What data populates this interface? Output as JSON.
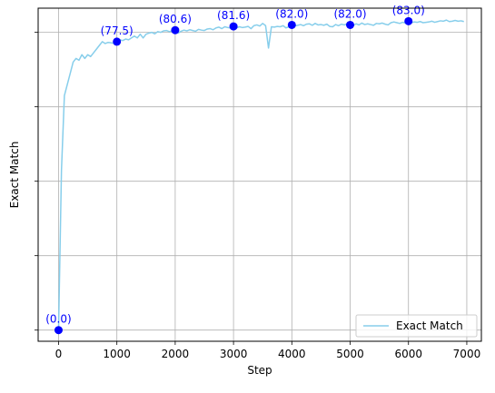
{
  "chart_data": {
    "type": "line",
    "xlabel": "Step",
    "ylabel": "Exact Match",
    "xlim": [
      -350,
      7250
    ],
    "ylim": [
      -3,
      86.5
    ],
    "xticks": [
      0,
      1000,
      2000,
      3000,
      4000,
      5000,
      6000,
      7000
    ],
    "yticks": [
      0,
      20,
      40,
      60,
      80
    ],
    "ytick_labels_visible": false,
    "grid": true,
    "legend": {
      "position": "lower-right",
      "entries": [
        "Exact Match"
      ]
    },
    "colors": {
      "line": "#87ceeb",
      "markers": "#0000ff",
      "annotations": "#0000ff"
    },
    "series": [
      {
        "name": "Exact Match",
        "x": [
          0,
          50,
          100,
          150,
          200,
          250,
          300,
          350,
          400,
          450,
          500,
          550,
          600,
          650,
          700,
          750,
          800,
          850,
          900,
          950,
          1000,
          1050,
          1100,
          1150,
          1200,
          1250,
          1300,
          1350,
          1400,
          1450,
          1500,
          1550,
          1600,
          1650,
          1700,
          1750,
          1800,
          1850,
          1900,
          1950,
          2000,
          2050,
          2100,
          2150,
          2200,
          2250,
          2300,
          2350,
          2400,
          2450,
          2500,
          2550,
          2600,
          2650,
          2700,
          2750,
          2800,
          2850,
          2900,
          2950,
          3000,
          3050,
          3100,
          3150,
          3200,
          3250,
          3300,
          3350,
          3400,
          3450,
          3500,
          3550,
          3600,
          3650,
          3700,
          3750,
          3800,
          3850,
          3900,
          3950,
          4000,
          4050,
          4100,
          4150,
          4200,
          4250,
          4300,
          4350,
          4400,
          4450,
          4500,
          4550,
          4600,
          4650,
          4700,
          4750,
          4800,
          4850,
          4900,
          4950,
          5000,
          5050,
          5100,
          5150,
          5200,
          5250,
          5300,
          5350,
          5400,
          5450,
          5500,
          5550,
          5600,
          5650,
          5700,
          5750,
          5800,
          5850,
          5900,
          5950,
          6000,
          6050,
          6100,
          6150,
          6200,
          6250,
          6300,
          6350,
          6400,
          6450,
          6500,
          6550,
          6600,
          6650,
          6700,
          6750,
          6800,
          6850,
          6900,
          6950
        ],
        "y": [
          0.0,
          43.0,
          63.0,
          66.0,
          69.0,
          72.0,
          73.0,
          72.5,
          74.0,
          73.0,
          74.0,
          73.5,
          74.5,
          75.5,
          76.5,
          77.5,
          77.0,
          77.3,
          77.2,
          77.0,
          77.5,
          78.0,
          77.8,
          78.2,
          78.0,
          78.5,
          79.0,
          78.5,
          79.5,
          78.5,
          79.5,
          79.8,
          80.0,
          79.6,
          80.2,
          80.0,
          80.4,
          80.5,
          80.2,
          80.4,
          80.6,
          79.8,
          80.3,
          80.6,
          80.4,
          80.7,
          80.5,
          80.3,
          80.8,
          80.6,
          80.5,
          80.9,
          81.0,
          80.7,
          81.2,
          81.4,
          81.0,
          81.5,
          81.3,
          81.2,
          81.6,
          81.2,
          81.5,
          81.3,
          81.4,
          81.6,
          81.0,
          81.8,
          82.0,
          81.7,
          82.4,
          81.8,
          75.8,
          81.5,
          81.4,
          81.6,
          81.5,
          81.8,
          81.2,
          81.5,
          82.0,
          81.7,
          81.9,
          82.1,
          81.8,
          82.2,
          82.3,
          81.9,
          82.4,
          82.0,
          82.1,
          81.9,
          82.2,
          81.6,
          81.5,
          82.1,
          81.8,
          82.2,
          82.0,
          82.3,
          82.0,
          81.8,
          82.3,
          82.0,
          82.5,
          82.1,
          82.3,
          82.1,
          81.9,
          82.4,
          82.3,
          82.5,
          82.2,
          82.0,
          82.6,
          82.8,
          82.6,
          82.4,
          82.7,
          82.5,
          83.0,
          82.6,
          82.8,
          82.7,
          82.9,
          82.6,
          82.7,
          82.8,
          83.0,
          82.7,
          82.9,
          83.1,
          83.0,
          83.3,
          82.9,
          83.0,
          83.2,
          83.0,
          83.1,
          82.9
        ],
        "show_in_legend": true
      }
    ],
    "annotated_points": {
      "x": [
        0,
        1000,
        2000,
        3000,
        4000,
        5000,
        6000
      ],
      "y": [
        0.0,
        77.5,
        80.6,
        81.6,
        82.0,
        82.0,
        83.0
      ],
      "labels": [
        "(0.0)",
        "(77.5)",
        "(80.6)",
        "(81.6)",
        "(82.0)",
        "(82.0)",
        "(83.0)"
      ]
    }
  }
}
